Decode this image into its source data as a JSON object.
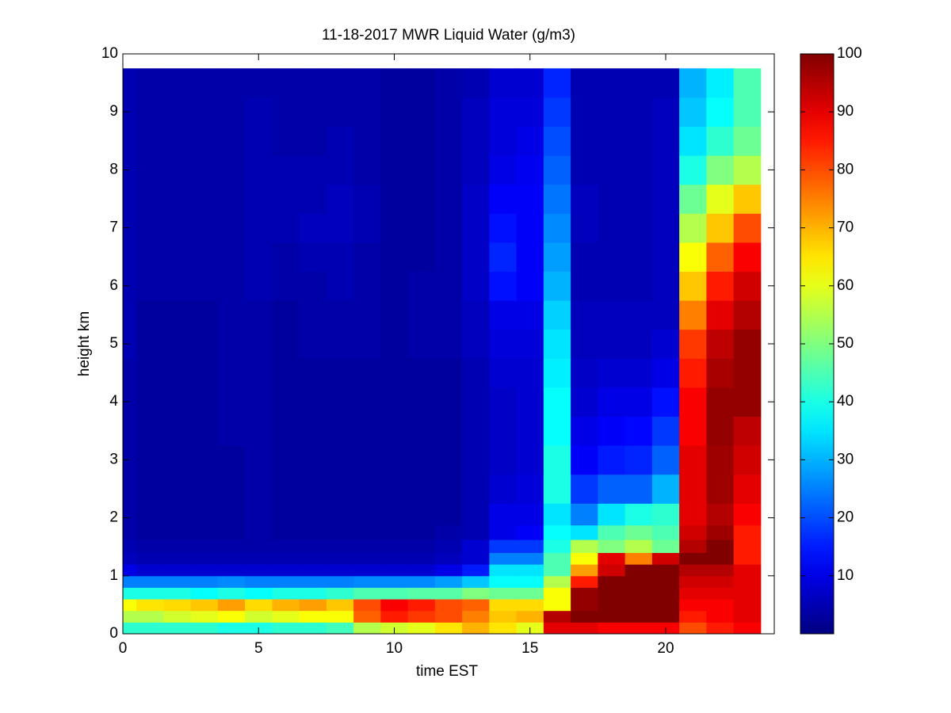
{
  "chart_data": {
    "type": "heatmap",
    "title": "11-18-2017 MWR Liquid Water (g/m3)",
    "x_label": "time EST",
    "y_label": "height km",
    "x": [
      0,
      1,
      2,
      3,
      4,
      5,
      6,
      7,
      8,
      9,
      10,
      11,
      12,
      13,
      14,
      15,
      16,
      17,
      18,
      19,
      20,
      21,
      22,
      23
    ],
    "y": [
      0.1,
      0.3,
      0.5,
      0.7,
      0.9,
      1.1,
      1.3,
      1.5,
      1.75,
      2.0,
      2.5,
      3,
      3.5,
      4,
      4.5,
      5,
      5.5,
      6,
      6.5,
      7,
      7.5,
      8,
      8.5,
      9,
      9.5
    ],
    "z": [
      [
        42,
        42,
        42,
        42,
        40,
        40,
        42,
        42,
        44,
        55,
        58,
        60,
        65,
        70,
        65,
        60,
        90,
        90,
        88,
        88,
        88,
        80,
        85,
        88
      ],
      [
        55,
        55,
        58,
        60,
        62,
        58,
        60,
        62,
        62,
        78,
        85,
        82,
        80,
        75,
        68,
        70,
        95,
        100,
        100,
        100,
        100,
        85,
        88,
        90
      ],
      [
        62,
        65,
        66,
        68,
        72,
        66,
        70,
        72,
        68,
        80,
        88,
        85,
        80,
        78,
        66,
        66,
        62,
        98,
        100,
        100,
        100,
        88,
        88,
        90
      ],
      [
        40,
        40,
        40,
        38,
        40,
        38,
        40,
        40,
        42,
        45,
        45,
        46,
        46,
        50,
        48,
        48,
        62,
        98,
        100,
        100,
        100,
        90,
        90,
        90
      ],
      [
        25,
        25,
        25,
        25,
        26,
        25,
        25,
        25,
        25,
        26,
        26,
        26,
        28,
        32,
        38,
        38,
        55,
        85,
        100,
        100,
        100,
        92,
        92,
        90
      ],
      [
        10,
        8,
        8,
        8,
        8,
        8,
        8,
        8,
        8,
        8,
        8,
        8,
        10,
        15,
        35,
        35,
        45,
        72,
        92,
        100,
        100,
        95,
        95,
        90
      ],
      [
        6,
        5,
        5,
        5,
        5,
        5,
        5,
        5,
        5,
        5,
        5,
        5,
        6,
        8,
        25,
        25,
        45,
        62,
        90,
        75,
        92,
        100,
        100,
        85
      ],
      [
        5,
        4,
        4,
        4,
        4,
        4,
        4,
        4,
        4,
        4,
        4,
        4,
        5,
        8,
        18,
        18,
        40,
        55,
        50,
        55,
        48,
        95,
        100,
        85
      ],
      [
        4,
        3,
        3,
        3,
        3,
        4,
        3,
        3,
        3,
        3,
        3,
        3,
        4,
        5,
        10,
        12,
        38,
        35,
        45,
        48,
        45,
        92,
        97,
        85
      ],
      [
        4,
        3,
        3,
        3,
        3,
        4,
        3,
        3,
        3,
        3,
        3,
        3,
        3,
        5,
        10,
        10,
        35,
        25,
        35,
        40,
        42,
        90,
        95,
        88
      ],
      [
        4,
        3,
        3,
        3,
        3,
        4,
        3,
        3,
        3,
        3,
        3,
        3,
        3,
        5,
        8,
        9,
        40,
        18,
        22,
        22,
        30,
        90,
        97,
        90
      ],
      [
        4,
        3,
        3,
        3,
        3,
        4,
        3,
        3,
        3,
        3,
        3,
        3,
        3,
        5,
        7,
        8,
        40,
        12,
        15,
        16,
        22,
        90,
        97,
        92
      ],
      [
        4,
        3,
        3,
        3,
        4,
        4,
        3,
        3,
        3,
        3,
        3,
        3,
        3,
        5,
        7,
        8,
        38,
        10,
        12,
        13,
        18,
        88,
        98,
        94
      ],
      [
        4,
        3,
        3,
        3,
        4,
        4,
        3,
        3,
        3,
        3,
        3,
        3,
        3,
        5,
        7,
        8,
        38,
        8,
        10,
        10,
        14,
        88,
        98,
        98
      ],
      [
        4,
        3,
        3,
        3,
        4,
        4,
        3,
        3,
        3,
        3,
        3,
        3,
        3,
        5,
        8,
        8,
        36,
        7,
        8,
        8,
        10,
        85,
        96,
        98
      ],
      [
        5,
        3,
        3,
        3,
        4,
        4,
        3,
        4,
        4,
        4,
        3,
        4,
        4,
        6,
        9,
        9,
        35,
        6,
        6,
        6,
        8,
        82,
        94,
        98
      ],
      [
        5,
        3,
        3,
        3,
        4,
        4,
        3,
        4,
        4,
        4,
        3,
        4,
        4,
        6,
        10,
        10,
        33,
        6,
        6,
        6,
        6,
        75,
        90,
        95
      ],
      [
        5,
        4,
        4,
        4,
        4,
        5,
        4,
        4,
        5,
        4,
        3,
        4,
        4,
        7,
        14,
        12,
        30,
        5,
        5,
        5,
        6,
        68,
        85,
        92
      ],
      [
        5,
        4,
        4,
        4,
        4,
        5,
        4,
        5,
        5,
        4,
        3,
        3,
        4,
        7,
        16,
        12,
        28,
        5,
        5,
        5,
        6,
        62,
        78,
        88
      ],
      [
        5,
        4,
        4,
        4,
        4,
        5,
        5,
        6,
        6,
        5,
        3,
        3,
        4,
        7,
        14,
        12,
        26,
        6,
        5,
        5,
        6,
        55,
        68,
        80
      ],
      [
        5,
        4,
        4,
        4,
        4,
        5,
        5,
        5,
        6,
        5,
        3,
        3,
        4,
        7,
        12,
        12,
        24,
        6,
        5,
        5,
        6,
        48,
        60,
        68
      ],
      [
        5,
        4,
        4,
        4,
        4,
        5,
        5,
        5,
        5,
        4,
        3,
        3,
        4,
        6,
        10,
        11,
        22,
        5,
        5,
        5,
        6,
        40,
        50,
        55
      ],
      [
        5,
        4,
        4,
        4,
        4,
        5,
        4,
        4,
        5,
        4,
        3,
        3,
        4,
        6,
        9,
        10,
        20,
        5,
        5,
        5,
        6,
        35,
        42,
        48
      ],
      [
        5,
        4,
        4,
        4,
        4,
        5,
        4,
        4,
        4,
        4,
        3,
        3,
        4,
        6,
        9,
        9,
        18,
        5,
        5,
        5,
        6,
        32,
        38,
        45
      ],
      [
        5,
        4,
        4,
        4,
        4,
        4,
        4,
        4,
        4,
        4,
        3,
        3,
        4,
        5,
        8,
        8,
        16,
        5,
        5,
        5,
        5,
        30,
        36,
        45
      ]
    ],
    "xlim": [
      0,
      24
    ],
    "xticks": [
      0,
      5,
      10,
      15,
      20
    ],
    "ylim": [
      0,
      10
    ],
    "yticks": [
      0,
      1,
      2,
      3,
      4,
      5,
      6,
      7,
      8,
      9,
      10
    ],
    "clim": [
      0,
      100
    ],
    "cticks": [
      10,
      20,
      30,
      40,
      50,
      60,
      70,
      80,
      90,
      100
    ],
    "colormap": "jet",
    "grid": false
  }
}
